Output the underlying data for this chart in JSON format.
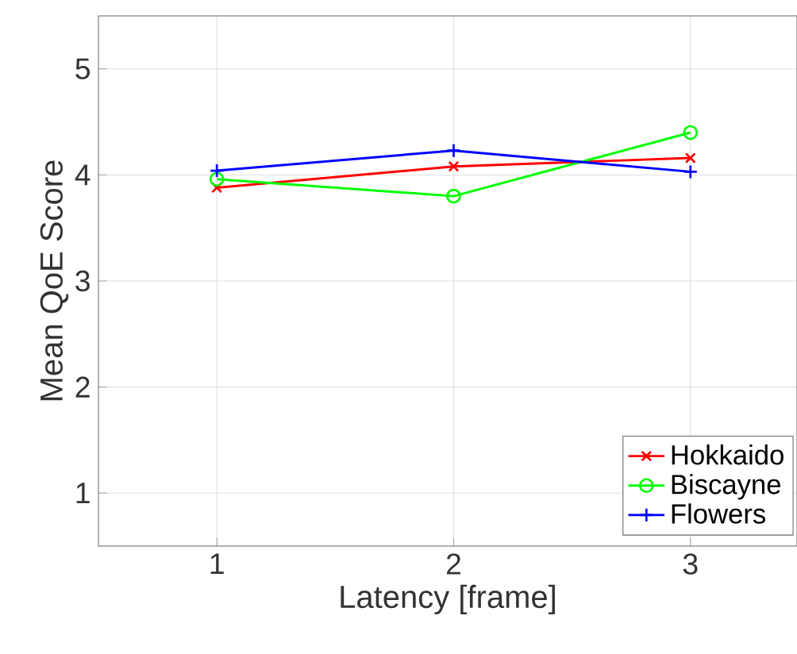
{
  "chart_data": {
    "type": "line",
    "xlabel": "Latency [frame]",
    "ylabel": "Mean QoE Score",
    "x": [
      1,
      2,
      3
    ],
    "xlim": [
      0.5,
      3.45
    ],
    "xticks": [
      1,
      2,
      3
    ],
    "ylim": [
      0.5,
      5.5
    ],
    "yticks": [
      1,
      2,
      3,
      4,
      5
    ],
    "grid": true,
    "legend": "bottom right",
    "line_style": "solid",
    "series": [
      {
        "name": "Hokkaido",
        "color": "#ff0000",
        "marker": "cross",
        "values": [
          3.88,
          4.08,
          4.16
        ]
      },
      {
        "name": "Biscayne",
        "color": "#00ff00",
        "marker": "circle",
        "values": [
          3.96,
          3.8,
          4.4
        ]
      },
      {
        "name": "Flowers",
        "color": "#0000ff",
        "marker": "cross",
        "values": [
          4.04,
          4.23,
          4.03
        ]
      }
    ]
  }
}
